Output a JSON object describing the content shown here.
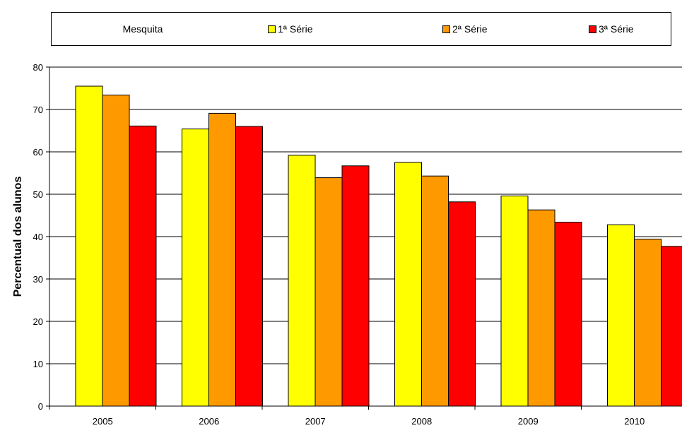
{
  "chart_data": {
    "type": "bar",
    "title": "Mesquita",
    "ylabel": "Percentual dos alunos",
    "xlabel": "",
    "ylim": [
      0,
      80
    ],
    "yticks": [
      0,
      10,
      20,
      30,
      40,
      50,
      60,
      70,
      80
    ],
    "grid": true,
    "legend_position": "top",
    "categories": [
      "2005",
      "2006",
      "2007",
      "2008",
      "2009",
      "2010"
    ],
    "series": [
      {
        "name": "1ª Série",
        "color": "#FFFF00",
        "values": [
          75.5,
          65.4,
          59.2,
          57.5,
          49.6,
          42.8
        ]
      },
      {
        "name": "2ª Série",
        "color": "#FF9900",
        "values": [
          73.4,
          69.1,
          53.9,
          54.3,
          46.3,
          39.4
        ]
      },
      {
        "name": "3ª Série",
        "color": "#FF0000",
        "values": [
          66.1,
          66.0,
          56.7,
          48.2,
          43.4,
          37.7
        ]
      }
    ]
  }
}
